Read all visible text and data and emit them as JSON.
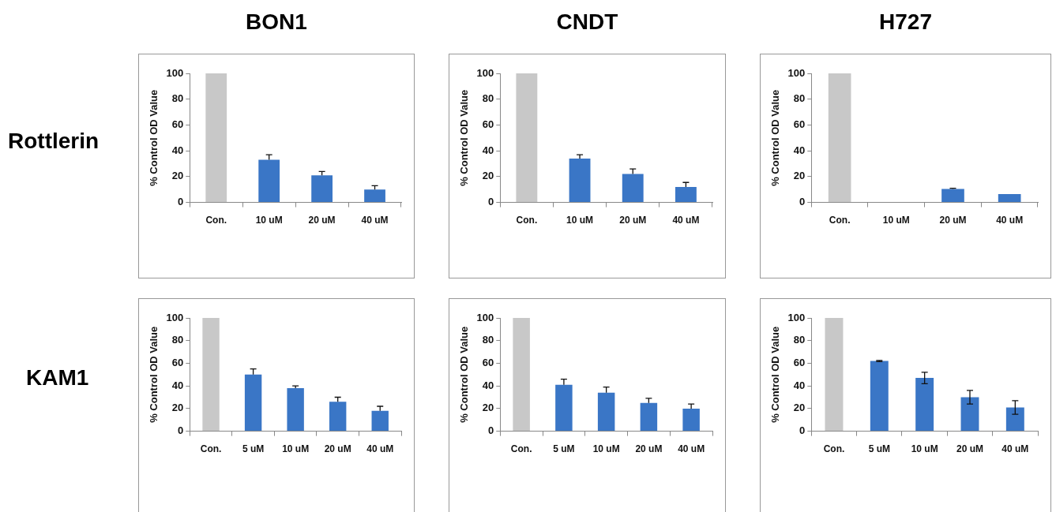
{
  "chart_data": [
    {
      "type": "bar",
      "title": "BON1",
      "annotations": [
        "Rottlerin"
      ],
      "ylabel": "% Control OD Value",
      "categories": [
        "Con.",
        "10 uM",
        "20 uM",
        "40 uM"
      ],
      "values": [
        100,
        33,
        21,
        10
      ],
      "colors": [
        "#c8c8c8",
        "#3a76c6",
        "#3a76c6",
        "#3a76c6"
      ],
      "errors": [
        null,
        [
          33,
          37
        ],
        [
          21,
          24
        ],
        [
          10,
          13
        ]
      ],
      "ylim": [
        0,
        100
      ],
      "yticks": [
        0,
        20,
        40,
        60,
        80,
        100
      ],
      "grid": false
    },
    {
      "type": "bar",
      "title": "CNDT",
      "ylabel": "% Control OD Value",
      "categories": [
        "Con.",
        "10 uM",
        "20 uM",
        "40 uM"
      ],
      "values": [
        100,
        34,
        22,
        12
      ],
      "colors": [
        "#c8c8c8",
        "#3a76c6",
        "#3a76c6",
        "#3a76c6"
      ],
      "errors": [
        null,
        [
          34,
          37
        ],
        [
          22,
          26
        ],
        [
          12,
          15.5
        ]
      ],
      "ylim": [
        0,
        100
      ],
      "yticks": [
        0,
        20,
        40,
        60,
        80,
        100
      ],
      "grid": false
    },
    {
      "type": "bar",
      "title": "H727",
      "ylabel": "% Control OD Value",
      "categories": [
        "Con.",
        "10 uM",
        "20 uM",
        "40 uM"
      ],
      "values": [
        100,
        0,
        10.5,
        6.5
      ],
      "colors": [
        "#c8c8c8",
        "#3a76c6",
        "#3a76c6",
        "#3a76c6"
      ],
      "errors": [
        null,
        null,
        [
          10.5,
          11
        ],
        null
      ],
      "ylim": [
        0,
        100
      ],
      "yticks": [
        0,
        20,
        40,
        60,
        80,
        100
      ],
      "grid": false
    },
    {
      "type": "bar",
      "annotations": [
        "KAM1"
      ],
      "ylabel": "% Control OD Value",
      "categories": [
        "Con.",
        "5 uM",
        "10 uM",
        "20 uM",
        "40 uM"
      ],
      "values": [
        100,
        50,
        38,
        26,
        18
      ],
      "colors": [
        "#c8c8c8",
        "#3a76c6",
        "#3a76c6",
        "#3a76c6",
        "#3a76c6"
      ],
      "errors": [
        null,
        [
          50,
          55
        ],
        [
          38,
          40
        ],
        [
          26,
          30
        ],
        [
          18,
          22
        ]
      ],
      "ylim": [
        0,
        100
      ],
      "yticks": [
        0,
        20,
        40,
        60,
        80,
        100
      ],
      "grid": false
    },
    {
      "type": "bar",
      "ylabel": "% Control OD Value",
      "categories": [
        "Con.",
        "5 uM",
        "10 uM",
        "20 uM",
        "40 uM"
      ],
      "values": [
        100,
        41,
        34,
        25,
        20
      ],
      "colors": [
        "#c8c8c8",
        "#3a76c6",
        "#3a76c6",
        "#3a76c6",
        "#3a76c6"
      ],
      "errors": [
        null,
        [
          41,
          46
        ],
        [
          34,
          39
        ],
        [
          25,
          29
        ],
        [
          20,
          24
        ]
      ],
      "ylim": [
        0,
        100
      ],
      "yticks": [
        0,
        20,
        40,
        60,
        80,
        100
      ],
      "grid": false
    },
    {
      "type": "bar",
      "ylabel": "% Control OD Value",
      "categories": [
        "Con.",
        "5 uM",
        "10 uM",
        "20 uM",
        "40 uM"
      ],
      "values": [
        100,
        62,
        47,
        30,
        21
      ],
      "colors": [
        "#c8c8c8",
        "#3a76c6",
        "#3a76c6",
        "#3a76c6",
        "#3a76c6"
      ],
      "errors": [
        null,
        [
          61.5,
          62.5
        ],
        [
          42,
          52
        ],
        [
          24,
          36
        ],
        [
          15,
          27
        ]
      ],
      "ylim": [
        0,
        100
      ],
      "yticks": [
        0,
        20,
        40,
        60,
        80,
        100
      ],
      "grid": false
    }
  ]
}
